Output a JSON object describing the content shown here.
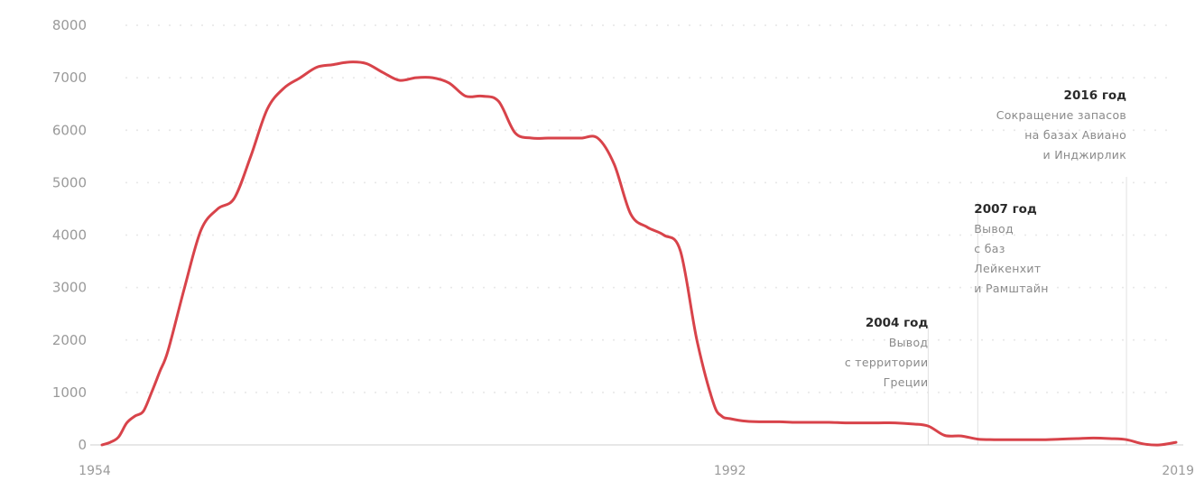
{
  "chart_data": {
    "type": "line",
    "title": "",
    "xlabel": "",
    "ylabel": "",
    "xlim": [
      1954,
      2019
    ],
    "ylim": [
      0,
      8000
    ],
    "grid": true,
    "y_ticks": [
      "0",
      "1000",
      "2000",
      "3000",
      "4000",
      "5000",
      "6000",
      "7000",
      "8000"
    ],
    "x_ticks": [
      {
        "value": 1954,
        "label": "1954"
      },
      {
        "value": 1992,
        "label": "1992"
      },
      {
        "value": 2019,
        "label": "2019"
      }
    ],
    "color": "#d8434a",
    "series": [
      {
        "x": [
          1954,
          1954.5,
          1955,
          1955.5,
          1956,
          1956.5,
          1957,
          1957.5,
          1958,
          1959,
          1960,
          1961,
          1962,
          1963,
          1964,
          1965,
          1966,
          1967,
          1968,
          1969,
          1970,
          1971,
          1972,
          1973,
          1974,
          1975,
          1976,
          1977,
          1978,
          1979,
          1980,
          1981,
          1982,
          1983,
          1984,
          1985,
          1986,
          1987,
          1988,
          1989,
          1990,
          1991,
          1991.5,
          1992,
          1993,
          1994,
          1995,
          1996,
          1997,
          1998,
          1999,
          2000,
          2001,
          2002,
          2003,
          2004,
          2005,
          2006,
          2007,
          2008,
          2009,
          2010,
          2011,
          2012,
          2013,
          2014,
          2015,
          2016,
          2017,
          2018,
          2019
        ],
        "y": [
          0,
          50,
          150,
          420,
          550,
          640,
          1000,
          1400,
          1800,
          3000,
          4100,
          4500,
          4700,
          5500,
          6400,
          6800,
          7000,
          7200,
          7250,
          7300,
          7270,
          7100,
          6950,
          7000,
          7000,
          6900,
          6650,
          6650,
          6550,
          5950,
          5850,
          5850,
          5850,
          5850,
          5850,
          5350,
          4400,
          4150,
          4000,
          3700,
          2000,
          800,
          550,
          500,
          450,
          440,
          440,
          430,
          430,
          430,
          420,
          420,
          420,
          420,
          400,
          360,
          180,
          170,
          110,
          100,
          100,
          100,
          100,
          110,
          120,
          130,
          120,
          100,
          20,
          0,
          50
        ]
      }
    ],
    "annotations": [
      {
        "year": 2004,
        "title": "2004 год",
        "lines": [
          "Вывод",
          "с территории",
          "Греции"
        ],
        "align": "right"
      },
      {
        "year": 2007,
        "title": "2007 год",
        "lines": [
          "Вывод",
          "с баз",
          "Лейкенхит",
          "и Рамштайн"
        ],
        "align": "left"
      },
      {
        "year": 2016,
        "title": "2016 год",
        "lines": [
          "Сокращение запасов",
          "на базах Авиано",
          "и Инджирлик"
        ],
        "align": "right"
      }
    ]
  }
}
